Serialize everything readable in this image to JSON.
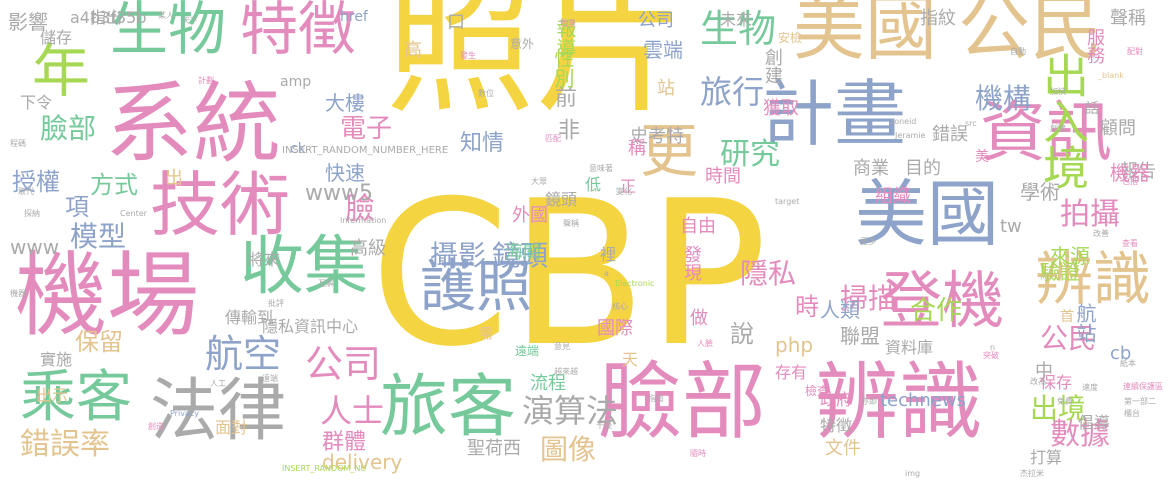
{
  "words": [
    {
      "text": "照片",
      "color": "#f5d442"
    },
    {
      "text": "CBP",
      "color": "#f5d442"
    },
    {
      "text": "系統",
      "color": "#e48bbd"
    },
    {
      "text": "機場",
      "color": "#e48bbd"
    },
    {
      "text": "臉部",
      "color": "#e48bbd"
    },
    {
      "text": "辨識",
      "color": "#e48bbd"
    },
    {
      "text": "美國",
      "color": "#e3c48f"
    },
    {
      "text": "美國",
      "color": "#8ea3c9"
    },
    {
      "text": "公民",
      "color": "#e3c48f"
    },
    {
      "text": "計畫",
      "color": "#8ea3c9"
    },
    {
      "text": "資訊",
      "color": "#e48bbd"
    },
    {
      "text": "技術",
      "color": "#e48bbd"
    },
    {
      "text": "收集",
      "color": "#76c99a"
    },
    {
      "text": "法律",
      "color": "#aaaaaa"
    },
    {
      "text": "旅客",
      "color": "#76c99a"
    },
    {
      "text": "乘客",
      "color": "#76c99a"
    },
    {
      "text": "登機",
      "color": "#e48bbd"
    },
    {
      "text": "辨識",
      "color": "#e3c48f"
    },
    {
      "text": "生物",
      "color": "#76c99a"
    },
    {
      "text": "特徵",
      "color": "#e48bbd"
    },
    {
      "text": "護照",
      "color": "#8ea3c9"
    },
    {
      "text": "年",
      "color": "#a6d854"
    },
    {
      "text": "更",
      "color": "#e3c48f"
    },
    {
      "text": "生物",
      "color": "#76c99a"
    },
    {
      "text": "出入境",
      "color": "#a6d854"
    },
    {
      "text": "旅行",
      "color": "#8ea3c9"
    },
    {
      "text": "機構",
      "color": "#8ea3c9"
    },
    {
      "text": "航空",
      "color": "#8ea3c9"
    },
    {
      "text": "公司",
      "color": "#e48bbd"
    },
    {
      "text": "人士",
      "color": "#e48bbd"
    },
    {
      "text": "演算法",
      "color": "#aaaaaa"
    },
    {
      "text": "拍攝",
      "color": "#e48bbd"
    },
    {
      "text": "研究",
      "color": "#76c99a"
    },
    {
      "text": "錯誤率",
      "color": "#e3c48f"
    },
    {
      "text": "數據",
      "color": "#e48bbd"
    },
    {
      "text": "出境",
      "color": "#a6d854"
    },
    {
      "text": "攝影",
      "color": "#8ea3c9"
    },
    {
      "text": "鏡頭",
      "color": "#8ea3c9"
    },
    {
      "text": "隱私",
      "color": "#e48bbd"
    },
    {
      "text": "掃描",
      "color": "#e48bbd"
    },
    {
      "text": "合作",
      "color": "#a6d854"
    },
    {
      "text": "模型",
      "color": "#8ea3c9"
    },
    {
      "text": "授權",
      "color": "#8ea3c9"
    },
    {
      "text": "方式",
      "color": "#76c99a"
    },
    {
      "text": "電子",
      "color": "#e48bbd"
    },
    {
      "text": "臉部",
      "color": "#76c99a"
    },
    {
      "text": "保留",
      "color": "#e3c48f"
    },
    {
      "text": "群體",
      "color": "#e48bbd"
    },
    {
      "text": "圖像",
      "color": "#e3c48f"
    },
    {
      "text": "delivery",
      "color": "#e3c48f"
    },
    {
      "text": "technews",
      "color": "#8ea3c9"
    },
    {
      "text": "公民",
      "color": "#e48bbd"
    },
    {
      "text": "航站",
      "color": "#8ea3c9"
    },
    {
      "text": "聯盟",
      "color": "#aaaaaa"
    },
    {
      "text": "人類",
      "color": "#8ea3c9"
    },
    {
      "text": "時",
      "color": "#e48bbd"
    },
    {
      "text": "說",
      "color": "#aaaaaa"
    },
    {
      "text": "php",
      "color": "#e3c48f"
    },
    {
      "text": "前",
      "color": "#aaaaaa"
    },
    {
      "text": "非",
      "color": "#aaaaaa"
    },
    {
      "text": "項",
      "color": "#8ea3c9"
    },
    {
      "text": "臉",
      "color": "#e48bbd"
    },
    {
      "text": "www",
      "color": "#aaaaaa"
    },
    {
      "text": "www5",
      "color": "#aaaaaa"
    },
    {
      "text": "高級",
      "color": "#aaaaaa"
    },
    {
      "text": "大樓",
      "color": "#8ea3c9"
    },
    {
      "text": "快速",
      "color": "#8ea3c9"
    },
    {
      "text": "知情",
      "color": "#8ea3c9"
    },
    {
      "text": "性別",
      "color": "#a6d854"
    },
    {
      "text": "報導",
      "color": "#a6d854"
    },
    {
      "text": "雲端",
      "color": "#8ea3c9"
    },
    {
      "text": "公司",
      "color": "#8ea3c9"
    },
    {
      "text": "影響",
      "color": "#aaaaaa"
    },
    {
      "text": "學術",
      "color": "#aaaaaa"
    },
    {
      "text": "報告",
      "color": "#aaaaaa"
    },
    {
      "text": "機器",
      "color": "#e48bbd"
    },
    {
      "text": "來源",
      "color": "#a6d854"
    },
    {
      "text": "驗證",
      "color": "#a6d854"
    },
    {
      "text": "錯誤",
      "color": "#aaaaaa"
    },
    {
      "text": "顧問",
      "color": "#aaaaaa"
    },
    {
      "text": "服務",
      "color": "#e48bbd"
    },
    {
      "text": "聲稱",
      "color": "#aaaaaa"
    },
    {
      "text": "指紋",
      "color": "#aaaaaa"
    },
    {
      "text": "創建",
      "color": "#aaaaaa"
    },
    {
      "text": "獲取",
      "color": "#e48bbd"
    },
    {
      "text": "時間",
      "color": "#e48bbd"
    },
    {
      "text": "組織",
      "color": "#e48bbd"
    },
    {
      "text": "商業",
      "color": "#aaaaaa"
    },
    {
      "text": "目的",
      "color": "#aaaaaa"
    },
    {
      "text": "史考特",
      "color": "#aaaaaa"
    },
    {
      "text": "自由",
      "color": "#e48bbd"
    },
    {
      "text": "發現",
      "color": "#e48bbd"
    },
    {
      "text": "國際",
      "color": "#e48bbd"
    },
    {
      "text": "做",
      "color": "#e48bbd"
    },
    {
      "text": "資料庫",
      "color": "#aaaaaa"
    },
    {
      "text": "政府",
      "color": "#e48bbd"
    },
    {
      "text": "特徵",
      "color": "#aaaaaa"
    },
    {
      "text": "文件",
      "color": "#e3c48f"
    },
    {
      "text": "聖荷西",
      "color": "#aaaaaa"
    },
    {
      "text": "流程",
      "color": "#76c99a"
    },
    {
      "text": "保存",
      "color": "#e48bbd"
    },
    {
      "text": "倡導",
      "color": "#aaaaaa"
    },
    {
      "text": "打算",
      "color": "#aaaaaa"
    },
    {
      "text": "外國",
      "color": "#e48bbd"
    },
    {
      "text": "海關",
      "color": "#76c99a"
    },
    {
      "text": "鏡頭",
      "color": "#aaaaaa"
    },
    {
      "text": "隱私資訊中心",
      "color": "#aaaaaa"
    },
    {
      "text": "實施",
      "color": "#aaaaaa"
    },
    {
      "text": "出示",
      "color": "#e3c48f"
    },
    {
      "text": "指出",
      "color": "#aaaaaa"
    },
    {
      "text": "儲存",
      "color": "#aaaaaa"
    },
    {
      "text": "下令",
      "color": "#aaaaaa"
    },
    {
      "text": "amp",
      "color": "#aaaaaa"
    },
    {
      "text": "href",
      "color": "#8ea3c9"
    },
    {
      "text": "a4b3f35b",
      "color": "#aaaaaa"
    },
    {
      "text": "面對",
      "color": "#e3c48f"
    },
    {
      "text": "傳輸到",
      "color": "#aaaaaa"
    },
    {
      "text": "將來",
      "color": "#aaaaaa"
    },
    {
      "text": "需",
      "color": "#e3c48f"
    },
    {
      "text": "遠端",
      "color": "#76c99a"
    },
    {
      "text": "檢查",
      "color": "#e48bbd"
    },
    {
      "text": "存有",
      "color": "#e48bbd"
    },
    {
      "text": "稱",
      "color": "#e48bbd"
    },
    {
      "text": "正",
      "color": "#e48bbd"
    },
    {
      "text": "低",
      "color": "#76c99a"
    },
    {
      "text": "美",
      "color": "#e48bbd"
    },
    {
      "text": "首",
      "color": "#e3c48f"
    },
    {
      "text": "中",
      "color": "#aaaaaa"
    },
    {
      "text": "天",
      "color": "#e3c48f"
    },
    {
      "text": "裡",
      "color": "#aaaaaa"
    },
    {
      "text": "高",
      "color": "#e3c48f"
    },
    {
      "text": "站",
      "color": "#e3c48f"
    },
    {
      "text": "口",
      "color": "#aaaaaa"
    },
    {
      "text": "tw",
      "color": "#aaaaaa"
    },
    {
      "text": "cb",
      "color": "#8ea3c9"
    },
    {
      "text": "ck",
      "color": "#8ea3c9"
    },
    {
      "text": "未來",
      "color": "#aaaaaa"
    },
    {
      "text": "安檢",
      "color": "#e3c48f"
    },
    {
      "text": "意外",
      "color": "#aaaaaa"
    },
    {
      "text": "出",
      "color": "#e3c48f"
    },
    {
      "text": "INSERT_RANDOM_NUMBER_HERE",
      "color": "#aaaaaa"
    },
    {
      "text": "INSERT_RANDOM_NU",
      "color": "#a6d854"
    },
    {
      "text": "Information",
      "color": "#aaaaaa"
    },
    {
      "text": "Electronic",
      "color": "#a6d854"
    },
    {
      "text": "Privacy",
      "color": "#8ea3c9"
    },
    {
      "text": "Center",
      "color": "#aaaaaa"
    },
    {
      "text": "target",
      "color": "#aaaaaa"
    },
    {
      "text": "img",
      "color": "#aaaaaa"
    },
    {
      "text": "zoneid",
      "color": "#aaaaaa"
    },
    {
      "text": "Jeramie",
      "color": "#aaaaaa"
    },
    {
      "text": "src",
      "color": "#aaaaaa"
    },
    {
      "text": "_blank",
      "color": "#e3c48f"
    },
    {
      "text": "n",
      "color": "#aaaaaa"
    },
    {
      "text": "a",
      "color": "#aaaaaa"
    },
    {
      "text": "話",
      "color": "#aaaaaa"
    },
    {
      "text": "某人",
      "color": "#aaaaaa"
    },
    {
      "text": "天下",
      "color": "#aaaaaa"
    },
    {
      "text": "計劃",
      "color": "#e48bbd"
    },
    {
      "text": "批評",
      "color": "#aaaaaa"
    },
    {
      "text": "互解",
      "color": "#aaaaaa"
    },
    {
      "text": "發生",
      "color": "#e48bbd"
    },
    {
      "text": "數位",
      "color": "#aaaaaa"
    },
    {
      "text": "背景",
      "color": "#e48bbd"
    },
    {
      "text": "匹配",
      "color": "#e48bbd"
    },
    {
      "text": "大眾",
      "color": "#aaaaaa"
    },
    {
      "text": "變化",
      "color": "#aaaaaa"
    },
    {
      "text": "指南",
      "color": "#aaaaaa"
    },
    {
      "text": "核心",
      "color": "#aaaaaa"
    },
    {
      "text": "意見",
      "color": "#aaaaaa"
    },
    {
      "text": "越來越",
      "color": "#aaaaaa"
    },
    {
      "text": "干擾",
      "color": "#aaaaaa"
    },
    {
      "text": "遠端",
      "color": "#aaaaaa"
    },
    {
      "text": "人工",
      "color": "#aaaaaa"
    },
    {
      "text": "創造",
      "color": "#e48bbd"
    },
    {
      "text": "取代",
      "color": "#aaaaaa"
    },
    {
      "text": "探納",
      "color": "#aaaaaa"
    },
    {
      "text": "更多",
      "color": "#aaaaaa"
    },
    {
      "text": "亦即",
      "color": "#aaaaaa"
    },
    {
      "text": "杰拉米",
      "color": "#aaaaaa"
    },
    {
      "text": "速度",
      "color": "#aaaaaa"
    },
    {
      "text": "包括",
      "color": "#e48bbd"
    },
    {
      "text": "查看",
      "color": "#e48bbd"
    },
    {
      "text": "改善",
      "color": "#aaaaaa"
    },
    {
      "text": "創建",
      "color": "#aaaaaa"
    },
    {
      "text": "加快",
      "color": "#aaaaaa"
    },
    {
      "text": "自動",
      "color": "#aaaaaa"
    },
    {
      "text": "配對",
      "color": "#e48bbd"
    },
    {
      "text": "突破",
      "color": "#e48bbd"
    },
    {
      "text": "紙本",
      "color": "#aaaaaa"
    },
    {
      "text": "改為",
      "color": "#aaaaaa"
    },
    {
      "text": "免費",
      "color": "#aaaaaa"
    },
    {
      "text": "聲稱",
      "color": "#aaaaaa"
    },
    {
      "text": "意味著",
      "color": "#aaaaaa"
    },
    {
      "text": "人臉",
      "color": "#e48bbd"
    },
    {
      "text": "隨時",
      "color": "#e48bbd"
    },
    {
      "text": "連續保護區",
      "color": "#e48bbd"
    },
    {
      "text": "第一部二",
      "color": "#aaaaaa"
    },
    {
      "text": "櫃台",
      "color": "#aaaaaa"
    },
    {
      "text": "程碼",
      "color": "#aaaaaa"
    },
    {
      "text": "機器",
      "color": "#aaaaaa"
    },
    {
      "text": "條件",
      "color": "#aaaaaa"
    },
    {
      "text": "網路",
      "color": "#aaaaaa"
    },
    {
      "text": "遭到",
      "color": "#aaaaaa"
    },
    {
      "text": "採取",
      "color": "#aaaaaa"
    },
    {
      "text": "擔心",
      "color": "#aaaaaa"
    }
  ]
}
